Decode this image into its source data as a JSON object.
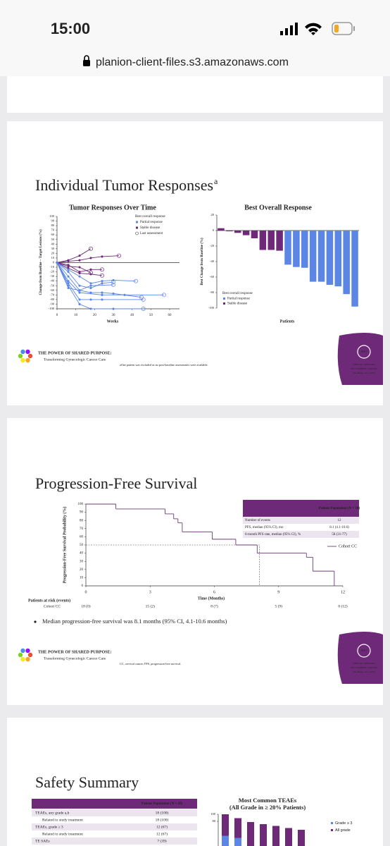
{
  "status_bar": {
    "time": "15:00"
  },
  "browser": {
    "url": "planion-client-files.s3.amazonaws.com"
  },
  "slides": [
    {
      "title": "Individual Tumor Responses",
      "title_sup": "a",
      "left_chart": {
        "type": "line",
        "title": "Tumor Responses Over Time",
        "x_label": "Weeks",
        "y_label": "Change from Baseline – Target Lesions (%)",
        "xlim": [
          0,
          60
        ],
        "xticks": [
          0,
          10,
          20,
          30,
          40,
          50,
          60
        ],
        "ylim": [
          -100,
          100
        ],
        "yticks": [
          -100,
          -90,
          -80,
          -70,
          -60,
          -50,
          -40,
          -30,
          -20,
          -10,
          0,
          10,
          20,
          30,
          40,
          50,
          60,
          70,
          80,
          90,
          100
        ],
        "legend": {
          "title": "Best overall response",
          "items": [
            {
              "label": "Partial response",
              "color": "#5b86e5"
            },
            {
              "label": "Stable disease",
              "color": "#6e2a78"
            },
            {
              "label": "Last assessment",
              "color": "#444444"
            }
          ]
        },
        "series": [
          {
            "color": "#6e2a78",
            "x": [
              0,
              6,
              12,
              18
            ],
            "values": [
              0,
              5,
              15,
              30
            ]
          },
          {
            "color": "#6e2a78",
            "x": [
              0,
              6,
              12,
              18,
              24,
              33
            ],
            "values": [
              0,
              3,
              5,
              10,
              13,
              15
            ]
          },
          {
            "color": "#6e2a78",
            "x": [
              0,
              6,
              12,
              18,
              24
            ],
            "values": [
              0,
              -5,
              -20,
              -15,
              -15
            ]
          },
          {
            "color": "#6e2a78",
            "x": [
              0,
              6,
              12,
              18,
              24
            ],
            "values": [
              0,
              -12,
              -23,
              -25,
              -28
            ]
          },
          {
            "color": "#6e2a78",
            "x": [
              0,
              6,
              12,
              18
            ],
            "values": [
              0,
              -8,
              -10,
              -22
            ]
          },
          {
            "color": "#5b86e5",
            "x": [
              0,
              6,
              12,
              18,
              24,
              30,
              42
            ],
            "values": [
              0,
              -15,
              -30,
              -45,
              -40,
              -38,
              -40
            ]
          },
          {
            "color": "#5b86e5",
            "x": [
              0,
              6,
              12,
              18,
              24,
              30
            ],
            "values": [
              0,
              -20,
              -50,
              -55,
              -45,
              -42
            ]
          },
          {
            "color": "#5b86e5",
            "x": [
              0,
              6,
              12,
              18,
              24,
              30,
              45
            ],
            "values": [
              0,
              -30,
              -60,
              -65,
              -65,
              -67,
              -75
            ]
          },
          {
            "color": "#5b86e5",
            "x": [
              0,
              6,
              12,
              24,
              36,
              57
            ],
            "values": [
              0,
              -40,
              -65,
              -70,
              -70,
              -70
            ]
          },
          {
            "color": "#5b86e5",
            "x": [
              0,
              6,
              12,
              18,
              24,
              46
            ],
            "values": [
              0,
              -45,
              -80,
              -80,
              -80,
              -80
            ]
          },
          {
            "color": "#5b86e5",
            "x": [
              0,
              6,
              12,
              18,
              30,
              46
            ],
            "values": [
              0,
              -50,
              -90,
              -100,
              -100,
              -100
            ]
          },
          {
            "color": "#5b86e5",
            "x": [
              0,
              6,
              12,
              18,
              30
            ],
            "values": [
              0,
              -55,
              -60,
              -50,
              -48
            ]
          }
        ]
      },
      "right_chart": {
        "type": "bar",
        "title": "Best Overall Response",
        "x_label": "Patients",
        "y_label": "Best Change from Baseline (%)",
        "ylim": [
          -100,
          20
        ],
        "yticks": [
          -100,
          -80,
          -60,
          -40,
          -20,
          0,
          20
        ],
        "legend_title": "Best overall response",
        "series": [
          {
            "name": "Partial response",
            "color": "#5b86e5",
            "values": [
              null,
              null,
              null,
              null,
              null,
              null,
              null,
              null,
              -44,
              -47,
              -48,
              -66,
              -66,
              -70,
              -72,
              -82,
              -98
            ]
          },
          {
            "name": "Stable disease",
            "color": "#6e2a78",
            "values": [
              3,
              -1,
              -3,
              -6,
              -10,
              -25,
              -25,
              -26,
              null,
              null,
              null,
              null,
              null,
              null,
              null,
              null,
              null
            ]
          }
        ]
      },
      "footnote": "aOne patient was excluded as no post-baseline assessments were available.",
      "footer": {
        "tagline": "THE POWER OF SHARED PURPOSE:",
        "subtitle": "Transforming Gynecologic Cancer Care",
        "badge": [
          "SGO",
          "ANNUAL MEETING",
          "ON WOMEN'S CANCER",
          "San Diego, CA • 2024"
        ]
      }
    },
    {
      "title": "Progression-Free Survival",
      "chart": {
        "type": "step",
        "x_label": "Time (Months)",
        "y_label": "Progression-Free Survival Probability (%)",
        "xlim": [
          0,
          12
        ],
        "xticks": [
          0,
          3,
          6,
          9,
          12
        ],
        "ylim": [
          0,
          100
        ],
        "yticks": [
          0,
          10,
          20,
          30,
          40,
          50,
          60,
          70,
          80,
          90,
          100
        ],
        "series": [
          {
            "name": "Cohort CC",
            "color": "#6e3b7a",
            "x": [
              0,
              1.4,
              3.7,
              4.1,
              4.3,
              4.5,
              5.9,
              7.0,
              8.0,
              10.3,
              10.6,
              11.6
            ],
            "values": [
              100,
              94,
              88,
              82,
              77,
              66,
              57,
              50,
              40,
              35,
              18,
              0
            ]
          }
        ],
        "median": {
          "x": 8.1,
          "y": 50
        }
      },
      "table": {
        "header": "Patient Population (N = 18)",
        "rows": [
          [
            "Number of events",
            "12"
          ],
          [
            "PFS, median (95% CI), mo",
            "8.1 (4.1-10.6)"
          ],
          [
            "6-month PFS rate, median (95% CI), %",
            "58 (31-77)"
          ]
        ]
      },
      "at_risk": {
        "title": "Patients at risk (events)",
        "group": "Cohort CC",
        "values": [
          "18 (0)",
          "15 (2)",
          "8 (7)",
          "5 (9)",
          "0 (12)"
        ]
      },
      "bullet": "Median progression-free survival was 8.1 months (95% CI, 4.1-10.6 months)",
      "footnote": "CC, cervical cancer; PFS, progression-free survival.",
      "footer": {
        "tagline": "THE POWER OF SHARED PURPOSE:",
        "subtitle": "Transforming Gynecologic Cancer Care",
        "badge": [
          "SGO",
          "ANNUAL MEETING",
          "ON WOMEN'S CANCER",
          "San Diego, CA • 2024"
        ]
      }
    },
    {
      "title": "Safety Summary",
      "table": {
        "header": "Patient Population (N = 18)",
        "rows": [
          [
            "TEAEs, any grade a,b",
            "18 (100)"
          ],
          [
            "Related to study treatment",
            "18 (100)"
          ],
          [
            "TEAEs, grade ≥ 3",
            "12 (67)"
          ],
          [
            "Related to study treatment",
            "12 (67)"
          ],
          [
            "TE SAEs",
            "7 (39)"
          ]
        ]
      },
      "chart": {
        "type": "bar",
        "title": "Most Common TEAEs",
        "subtitle": "(All Grade in ≥ 20% Patients)",
        "ylim": [
          0,
          100
        ],
        "yticks": [
          80,
          100
        ],
        "series": [
          {
            "name": "Grade ≥ 3",
            "color": "#5b86e5",
            "values": [
              39,
              33,
              0,
              0,
              0,
              0,
              0
            ]
          },
          {
            "name": "All grade",
            "color": "#6e2a78",
            "values": [
              100,
              89,
              78,
              72,
              67,
              61,
              56
            ]
          }
        ]
      }
    }
  ]
}
